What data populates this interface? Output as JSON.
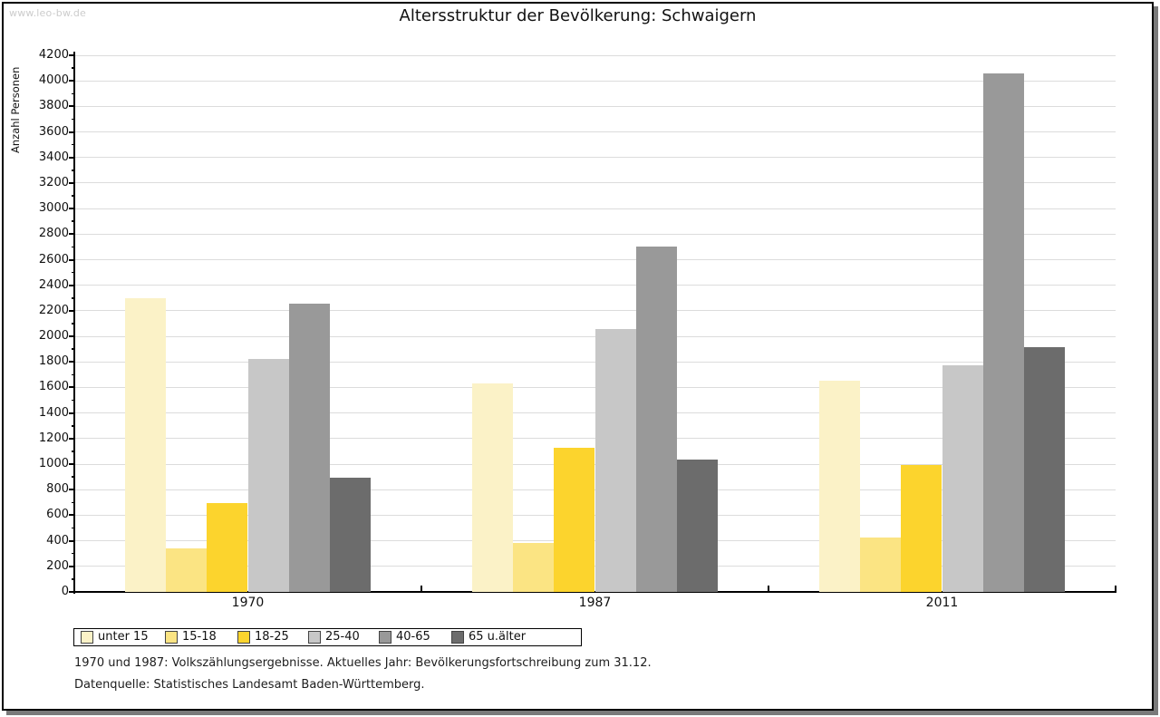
{
  "page": {
    "watermark": "www.leo-bw.de",
    "title": "Altersstruktur der Bevölkerung: Schwaigern",
    "footnotes": [
      "1970 und 1987: Volkszählungsergebnisse. Aktuelles Jahr: Bevölkerungsfortschreibung zum 31.12.",
      "Datenquelle: Statistisches Landesamt Baden-Württemberg."
    ]
  },
  "chart_data": {
    "type": "bar",
    "title": "Altersstruktur der Bevölkerung: Schwaigern",
    "xlabel": "",
    "ylabel": "Anzahl Personen",
    "categories": [
      "1970",
      "1987",
      "2011"
    ],
    "series": [
      {
        "name": "unter 15",
        "color": "#fbf2c7",
        "values": [
          2300,
          1630,
          1655
        ]
      },
      {
        "name": "15-18",
        "color": "#fbe483",
        "values": [
          340,
          380,
          425
        ]
      },
      {
        "name": "18-25",
        "color": "#fcd42d",
        "values": [
          695,
          1130,
          990
        ]
      },
      {
        "name": "25-40",
        "color": "#c7c7c7",
        "values": [
          1820,
          2060,
          1775
        ]
      },
      {
        "name": "40-65",
        "color": "#999999",
        "values": [
          2255,
          2700,
          4060
        ]
      },
      {
        "name": "65 u.älter",
        "color": "#6c6c6c",
        "values": [
          895,
          1035,
          1915
        ]
      }
    ],
    "ylim": [
      0,
      4200
    ],
    "ytick_step": 200,
    "ytick_minor_step": 100,
    "grid": "horizontal",
    "legend_position": "bottom",
    "colors_meaning": {
      "gridline": "#dcdcdc",
      "axis": "#000000",
      "watermark": "#cccccc",
      "card_shadow": "#7a7a7a"
    }
  }
}
